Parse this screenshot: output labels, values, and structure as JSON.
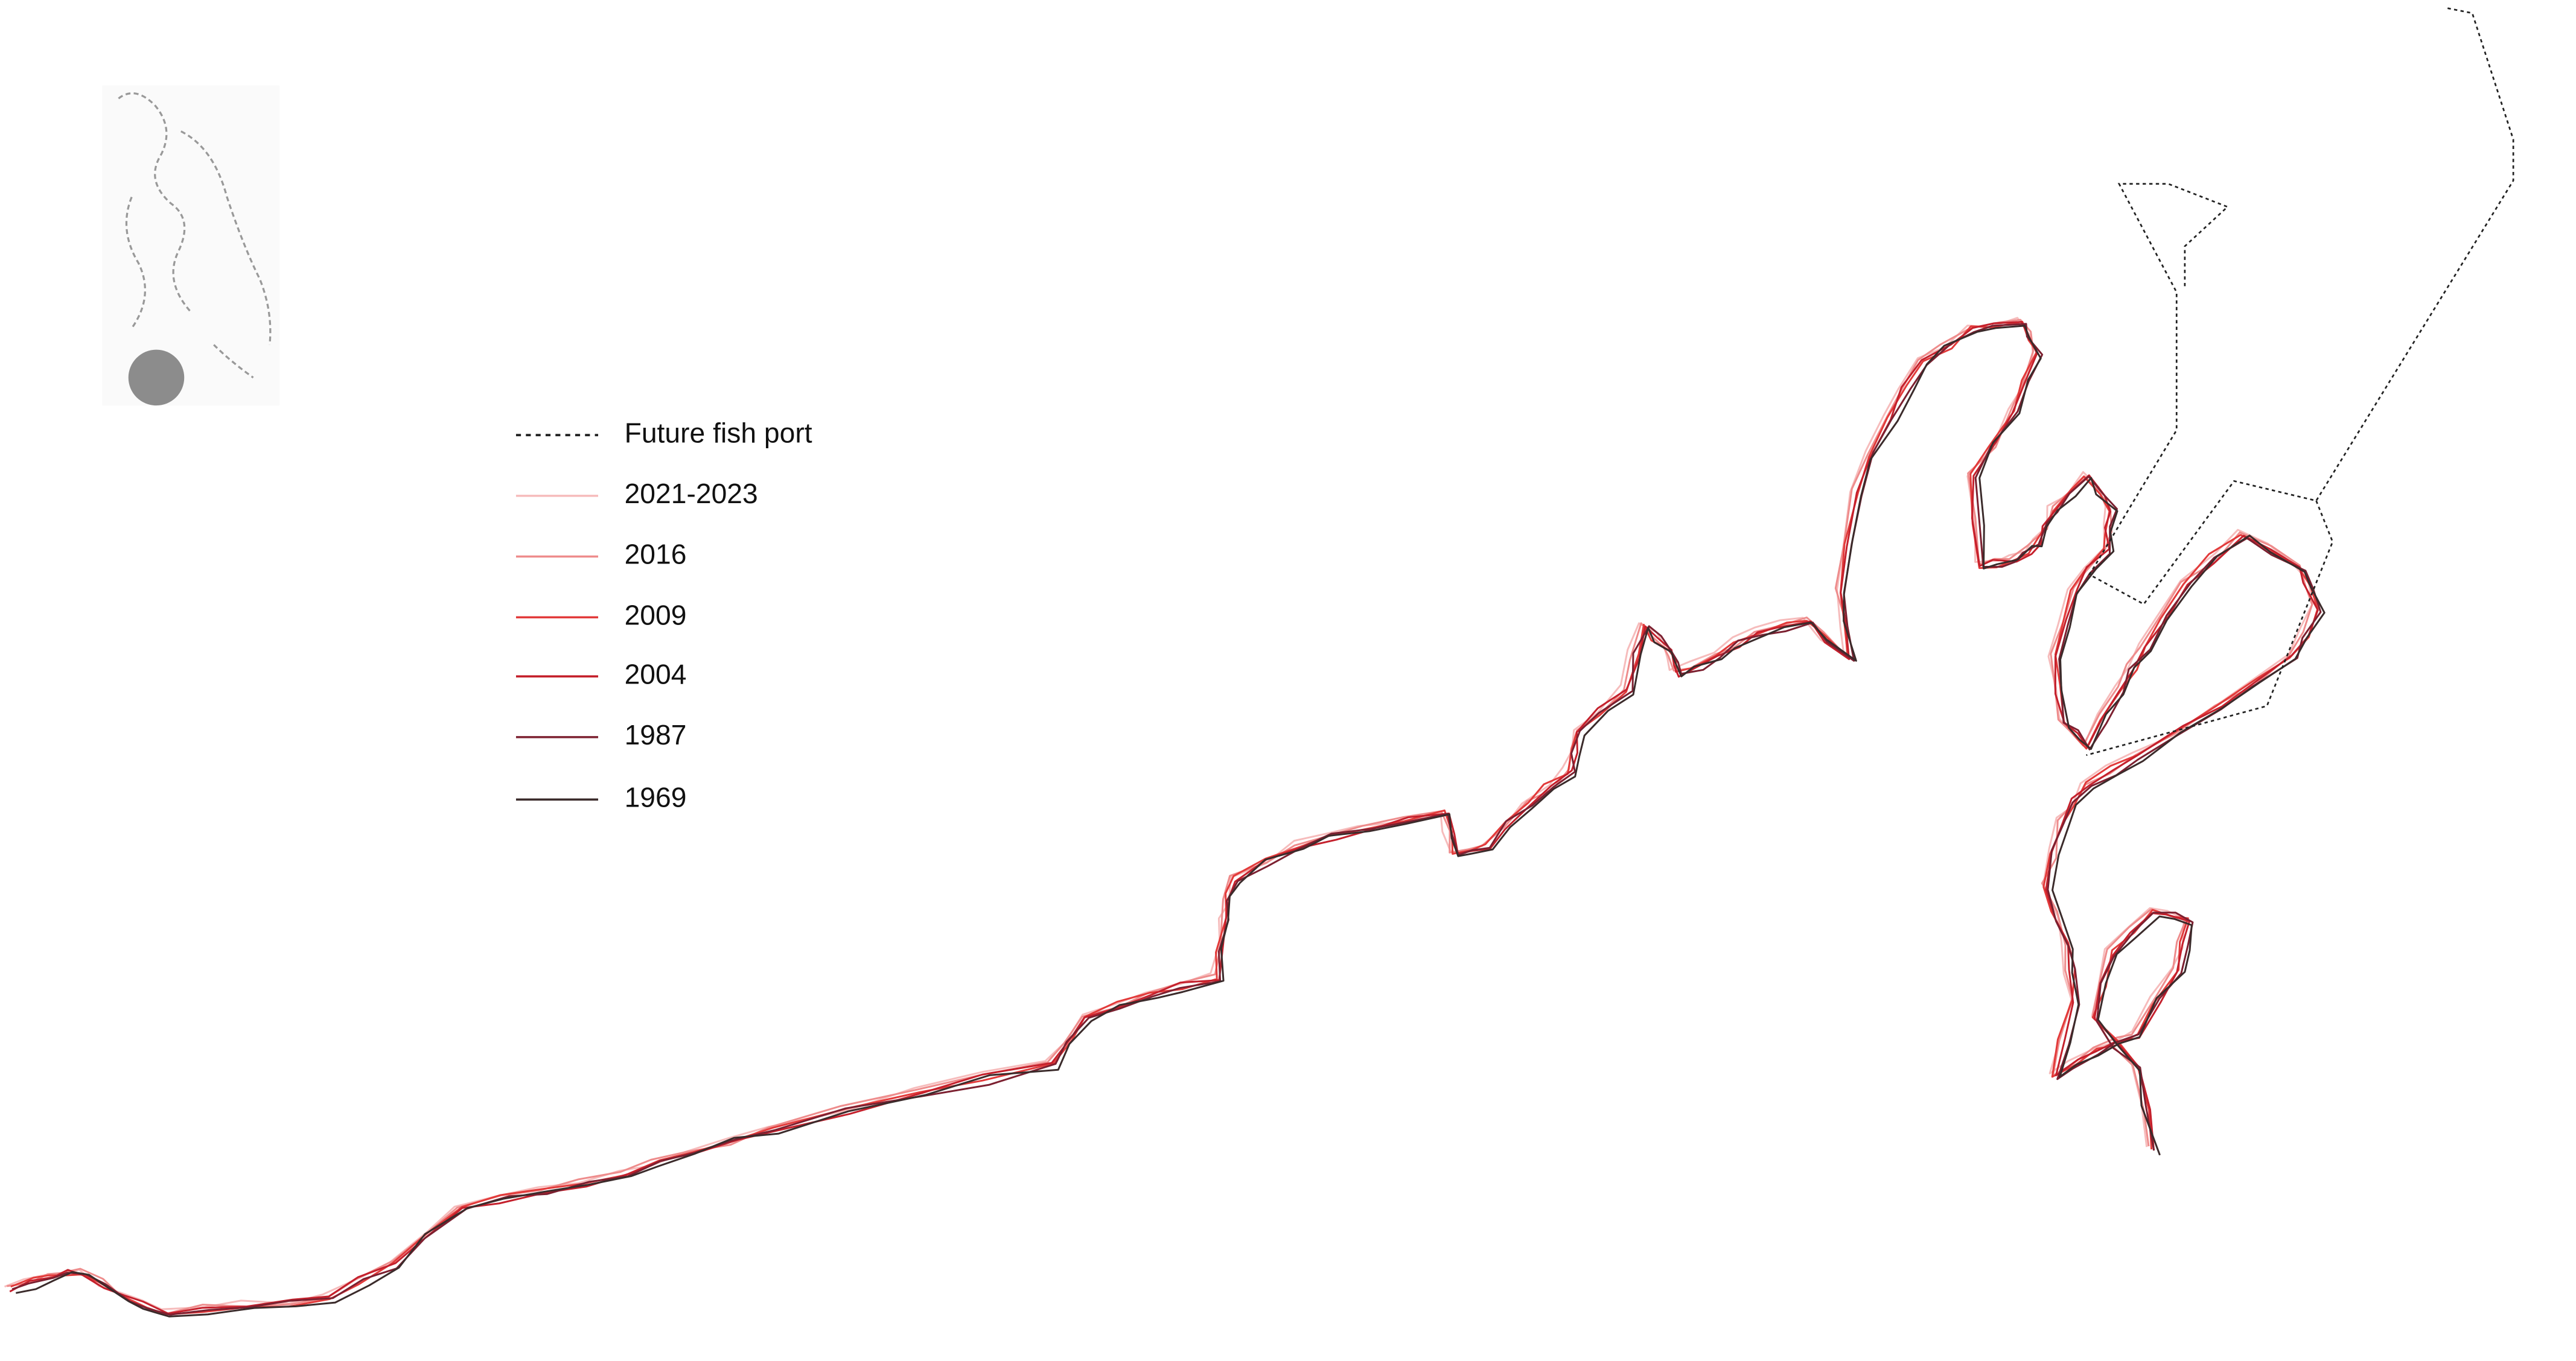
{
  "legend": [
    {
      "label": "Future fish port",
      "color": "#222222",
      "dashed": true
    },
    {
      "label": "2021-2023",
      "color": "#f6bcbc",
      "dashed": false
    },
    {
      "label": "2016",
      "color": "#ee8c8c",
      "dashed": false
    },
    {
      "label": "2009",
      "color": "#e23a3a",
      "dashed": false
    },
    {
      "label": "2004",
      "color": "#c4202c",
      "dashed": false
    },
    {
      "label": "1987",
      "color": "#7c2030",
      "dashed": false
    },
    {
      "label": "1969",
      "color": "#3b2b2b",
      "dashed": false
    }
  ]
}
